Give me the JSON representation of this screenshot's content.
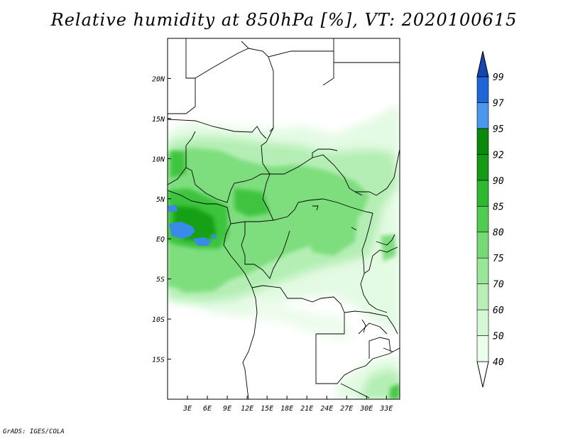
{
  "title": "Relative humidity at 850hPa [%], VT: 2020100615",
  "credit": "GrADS: IGES/COLA",
  "map": {
    "lon_range": [
      0,
      35
    ],
    "lat_range": [
      -20,
      25
    ],
    "lat_ticks": [
      {
        "value": 20,
        "label": "20N"
      },
      {
        "value": 15,
        "label": "15N"
      },
      {
        "value": 10,
        "label": "10N"
      },
      {
        "value": 5,
        "label": "5N"
      },
      {
        "value": 0,
        "label": "EQ"
      },
      {
        "value": -5,
        "label": "5S"
      },
      {
        "value": -10,
        "label": "10S"
      },
      {
        "value": -15,
        "label": "15S"
      }
    ],
    "lon_ticks": [
      {
        "value": 3,
        "label": "3E"
      },
      {
        "value": 6,
        "label": "6E"
      },
      {
        "value": 9,
        "label": "9E"
      },
      {
        "value": 12,
        "label": "12E"
      },
      {
        "value": 15,
        "label": "15E"
      },
      {
        "value": 18,
        "label": "18E"
      },
      {
        "value": 21,
        "label": "21E"
      },
      {
        "value": 24,
        "label": "24E"
      },
      {
        "value": 27,
        "label": "27E"
      },
      {
        "value": 30,
        "label": "30E"
      },
      {
        "value": 33,
        "label": "33E"
      }
    ]
  },
  "colorbar": {
    "levels": [
      "40",
      "50",
      "60",
      "70",
      "75",
      "80",
      "85",
      "90",
      "92",
      "95",
      "97",
      "99"
    ],
    "colors": [
      "#ffffff",
      "#eaffea",
      "#d4f8d4",
      "#b8f0b8",
      "#98e698",
      "#74da74",
      "#50cc50",
      "#2eb82e",
      "#169a16",
      "#0a8a0a",
      "#4a98ee",
      "#1e66d8",
      "#1446b0"
    ]
  }
}
